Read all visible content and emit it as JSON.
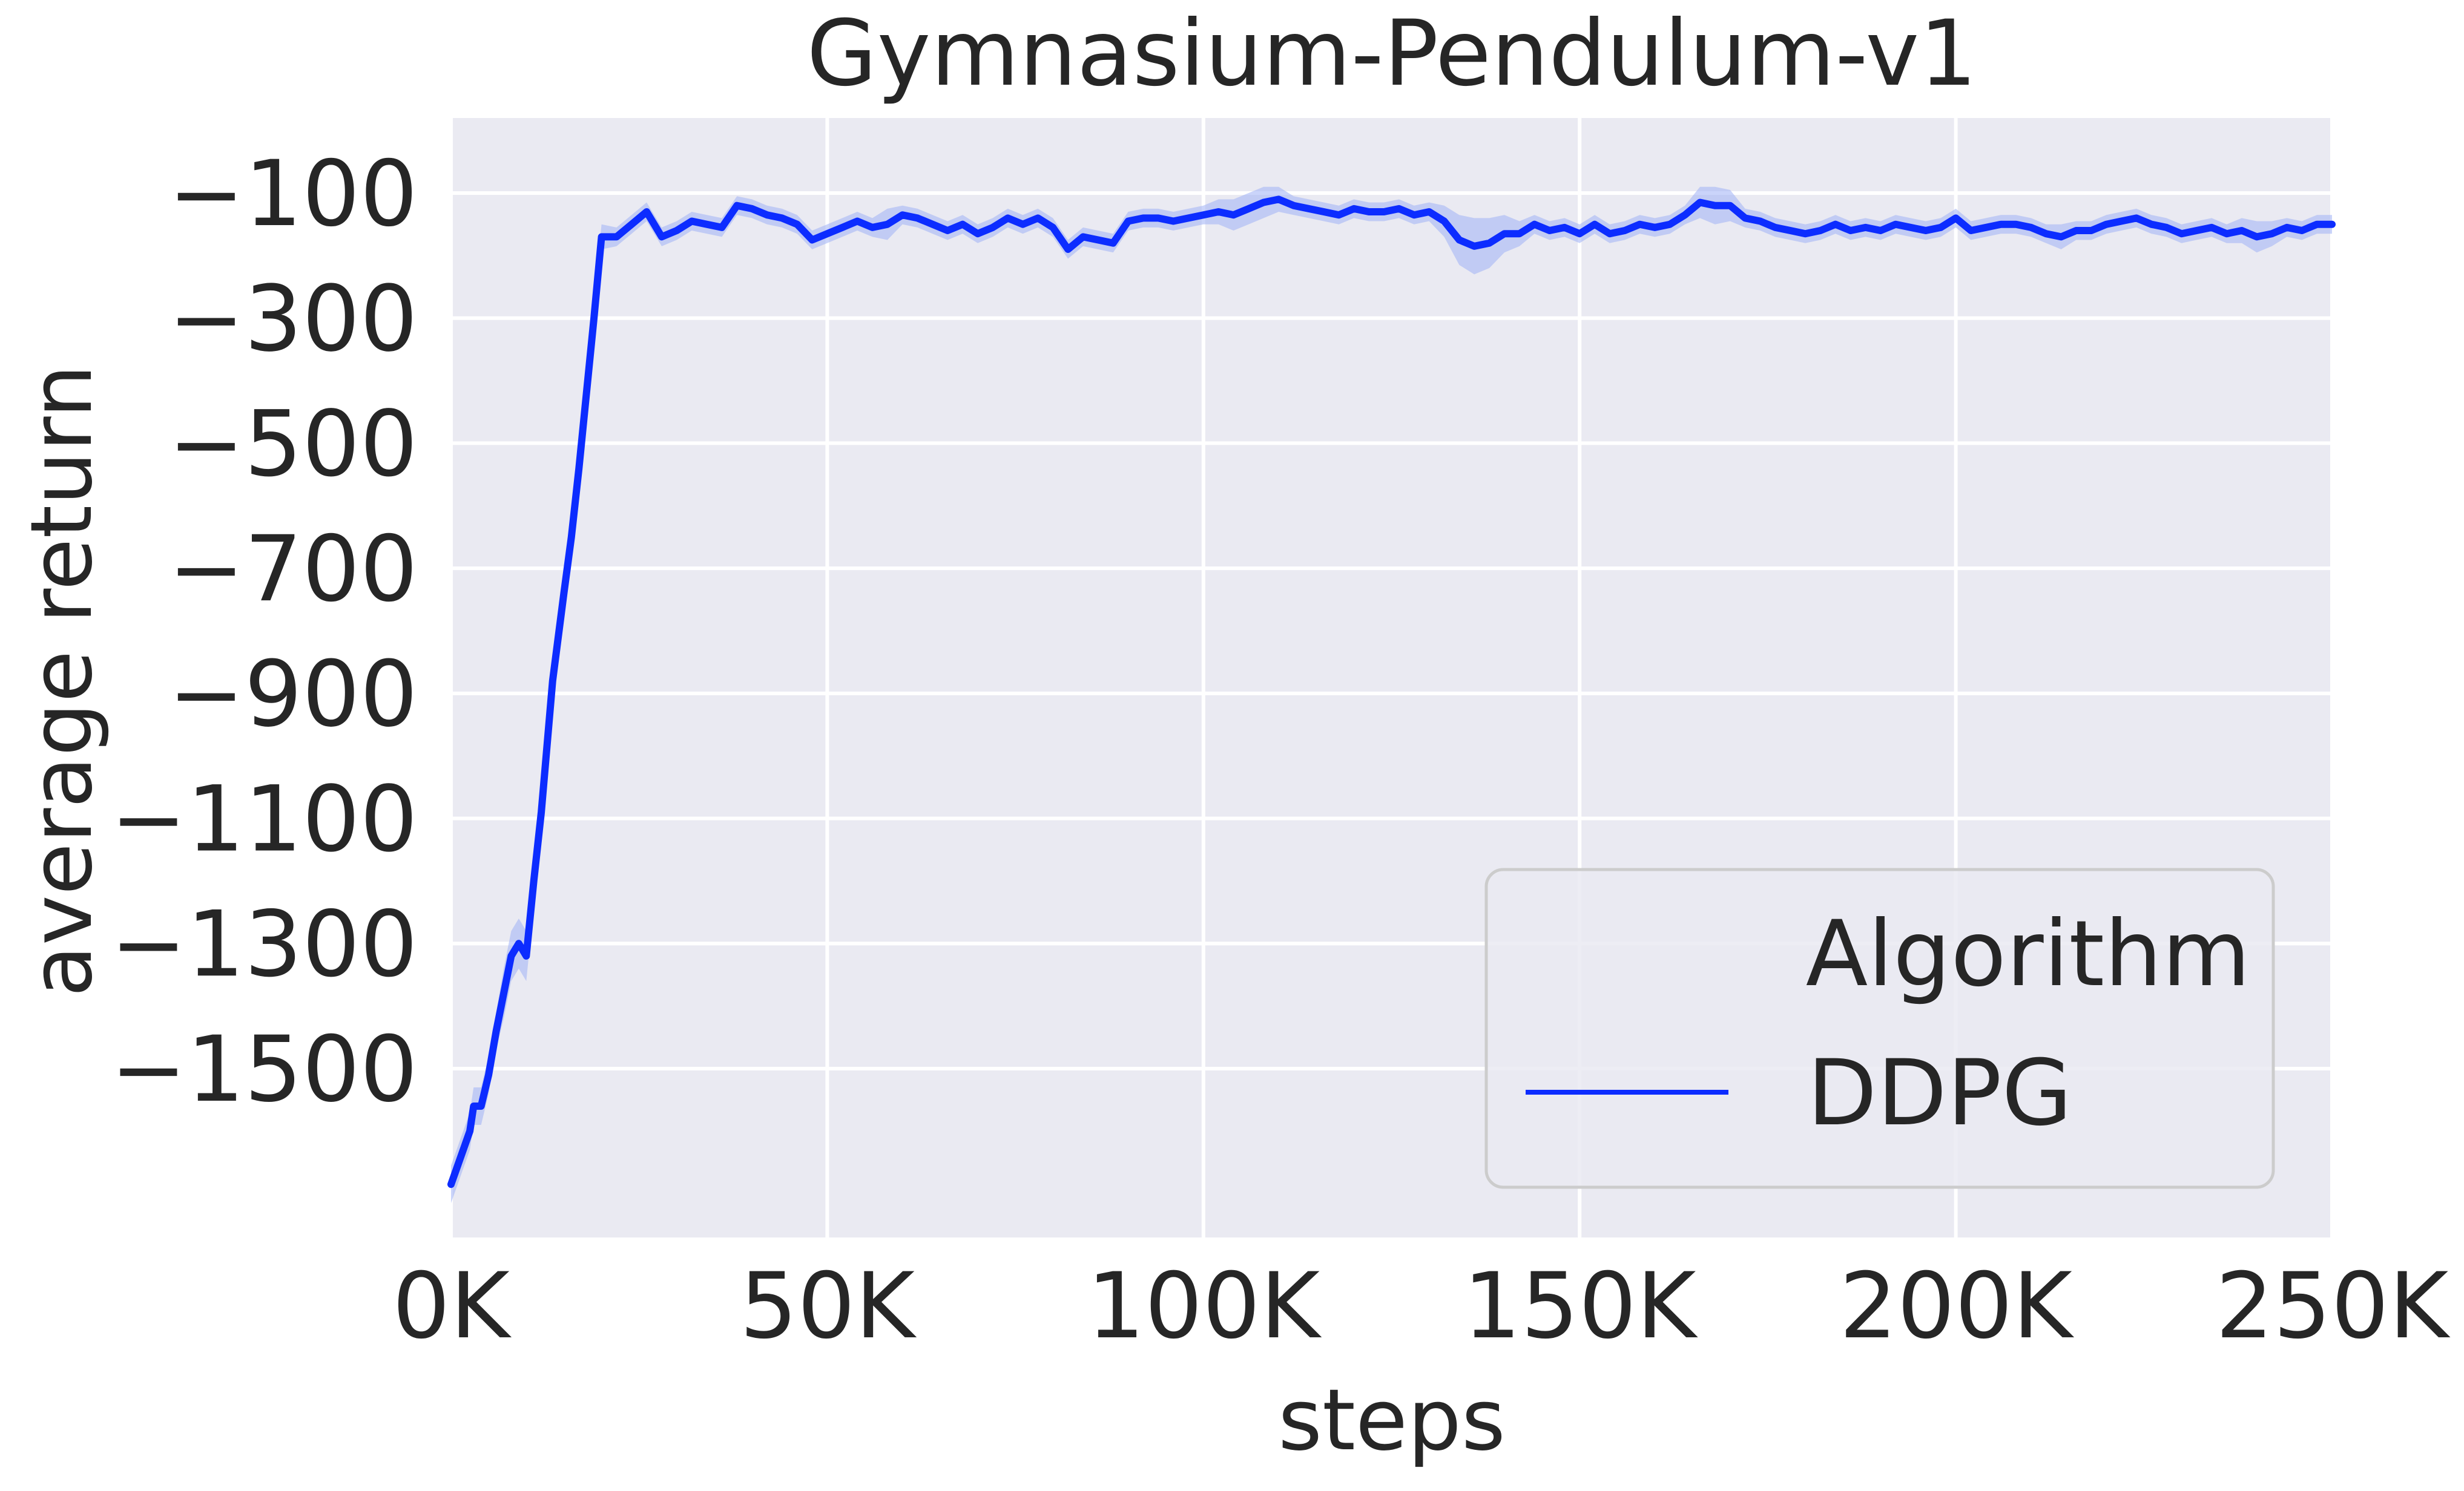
{
  "colors": {
    "plot_background": "#eaeaf2",
    "grid": "#ffffff",
    "series_line": "#0c2cff",
    "series_band": "#9fb0f5",
    "text": "#262626",
    "legend_border": "#cccccc"
  },
  "chart_data": {
    "type": "line",
    "title": "Gymnasium-Pendulum-v1",
    "xlabel": "steps",
    "ylabel": "average return",
    "xlim": [
      0,
      250000
    ],
    "ylim": [
      -1770,
      20
    ],
    "x_ticks": [
      0,
      50000,
      100000,
      150000,
      200000,
      250000
    ],
    "x_tick_labels": [
      "0K",
      "50K",
      "100K",
      "150K",
      "200K",
      "250K"
    ],
    "y_ticks": [
      -100,
      -300,
      -500,
      -700,
      -900,
      -1100,
      -1300,
      -1500
    ],
    "y_tick_labels": [
      "−100",
      "−300",
      "−500",
      "−700",
      "−900",
      "−1100",
      "−1300",
      "−1500"
    ],
    "grid": true,
    "legend": {
      "title": "Algorithm",
      "placement": "lower-right",
      "entries": [
        "DDPG"
      ]
    },
    "series": [
      {
        "name": "DDPG",
        "color": "#0c2cff",
        "x": [
          0,
          2500,
          3000,
          4000,
          5000,
          6000,
          7000,
          8000,
          9000,
          10000,
          11000,
          12000,
          13500,
          15000,
          16000,
          17000,
          18000,
          19000,
          20000,
          22000,
          24000,
          26000,
          28000,
          30000,
          32000,
          34000,
          36000,
          38000,
          40000,
          42000,
          44000,
          46000,
          48000,
          50000,
          52000,
          54000,
          56000,
          58000,
          60000,
          62000,
          64000,
          66000,
          68000,
          70000,
          72000,
          74000,
          76000,
          78000,
          80000,
          82000,
          84000,
          86000,
          88000,
          90000,
          92000,
          94000,
          96000,
          98000,
          100000,
          102000,
          104000,
          106000,
          108000,
          110000,
          112000,
          114000,
          116000,
          118000,
          120000,
          122000,
          124000,
          126000,
          128000,
          130000,
          132000,
          134000,
          136000,
          138000,
          140000,
          142000,
          144000,
          146000,
          148000,
          150000,
          152000,
          154000,
          156000,
          158000,
          160000,
          162000,
          164000,
          166000,
          168000,
          170000,
          172000,
          174000,
          176000,
          178000,
          180000,
          182000,
          184000,
          186000,
          188000,
          190000,
          192000,
          194000,
          196000,
          198000,
          200000,
          202000,
          204000,
          206000,
          208000,
          210000,
          212000,
          214000,
          216000,
          218000,
          220000,
          222000,
          224000,
          226000,
          228000,
          230000,
          232000,
          234000,
          236000,
          238000,
          240000,
          242000,
          244000,
          246000,
          248000,
          250000
        ],
        "values": [
          -1685,
          -1600,
          -1560,
          -1560,
          -1510,
          -1440,
          -1380,
          -1320,
          -1300,
          -1320,
          -1200,
          -1090,
          -880,
          -740,
          -650,
          -540,
          -420,
          -300,
          -170,
          -170,
          -150,
          -130,
          -170,
          -160,
          -145,
          -150,
          -155,
          -120,
          -125,
          -135,
          -140,
          -150,
          -175,
          -165,
          -155,
          -145,
          -155,
          -150,
          -135,
          -140,
          -150,
          -160,
          -150,
          -165,
          -155,
          -140,
          -150,
          -140,
          -155,
          -190,
          -170,
          -175,
          -180,
          -145,
          -140,
          -140,
          -145,
          -140,
          -135,
          -130,
          -135,
          -125,
          -115,
          -110,
          -120,
          -125,
          -130,
          -135,
          -125,
          -130,
          -130,
          -125,
          -135,
          -130,
          -145,
          -175,
          -185,
          -180,
          -165,
          -165,
          -150,
          -160,
          -155,
          -165,
          -150,
          -165,
          -160,
          -150,
          -155,
          -150,
          -135,
          -115,
          -120,
          -120,
          -140,
          -145,
          -155,
          -160,
          -165,
          -160,
          -150,
          -160,
          -155,
          -160,
          -150,
          -155,
          -160,
          -155,
          -140,
          -160,
          -155,
          -150,
          -150,
          -155,
          -165,
          -170,
          -160,
          -160,
          -150,
          -145,
          -140,
          -150,
          -155,
          -165,
          -160,
          -155,
          -165,
          -160,
          -170,
          -165,
          -155,
          -160,
          -150,
          -150
        ],
        "band_halfwidth": [
          30,
          30,
          30,
          30,
          30,
          30,
          40,
          40,
          40,
          40,
          40,
          35,
          30,
          30,
          30,
          30,
          30,
          25,
          20,
          15,
          15,
          15,
          15,
          15,
          15,
          15,
          15,
          15,
          15,
          15,
          15,
          15,
          15,
          15,
          15,
          15,
          15,
          25,
          15,
          15,
          15,
          15,
          15,
          15,
          15,
          15,
          15,
          15,
          15,
          15,
          15,
          15,
          15,
          15,
          15,
          15,
          15,
          15,
          15,
          20,
          25,
          25,
          25,
          20,
          15,
          15,
          15,
          15,
          15,
          15,
          15,
          15,
          15,
          15,
          25,
          40,
          45,
          40,
          30,
          20,
          15,
          15,
          15,
          15,
          15,
          15,
          15,
          15,
          15,
          15,
          15,
          25,
          30,
          25,
          15,
          15,
          15,
          15,
          15,
          15,
          15,
          15,
          15,
          15,
          15,
          15,
          15,
          15,
          15,
          15,
          15,
          15,
          15,
          15,
          15,
          20,
          15,
          15,
          15,
          15,
          15,
          15,
          15,
          15,
          15,
          15,
          15,
          20,
          25,
          20,
          15,
          15,
          15,
          15
        ]
      }
    ]
  }
}
